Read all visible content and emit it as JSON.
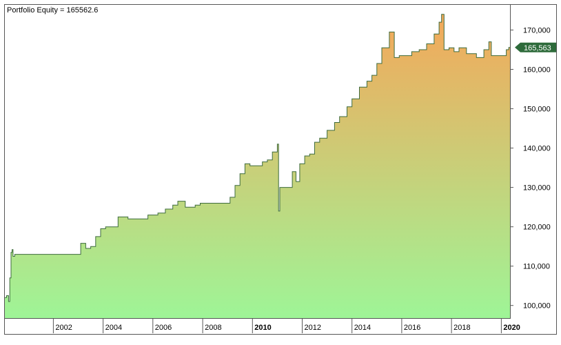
{
  "chart_data": {
    "type": "area",
    "title": "Portfolio Equity = 165562.6",
    "xlabel": "",
    "ylabel": "",
    "last_value_label": "165,563",
    "x_ticks": [
      "2002",
      "2004",
      "2006",
      "2008",
      "2010",
      "2012",
      "2014",
      "2016",
      "2018",
      "2020"
    ],
    "x_ticks_bold": [
      "2010",
      "2020"
    ],
    "y_ticks": [
      "100,000",
      "110,000",
      "120,000",
      "130,000",
      "140,000",
      "150,000",
      "160,000",
      "170,000"
    ],
    "y_tick_values": [
      100000,
      110000,
      120000,
      130000,
      140000,
      150000,
      160000,
      170000
    ],
    "xlim": [
      2000.05,
      2020.35
    ],
    "ylim": [
      96800,
      176400
    ],
    "grid": false,
    "legend": "none",
    "colors": {
      "line": "#3d6b3d",
      "fill_top": "#f4a85a",
      "fill_bottom": "#9ef597",
      "label_bg": "#2e6b3b",
      "label_text": "#ffffff",
      "axis_text": "#000000",
      "frame": "#555555"
    },
    "series": [
      {
        "values_x": [
          2000.05,
          2000.12,
          2000.2,
          2000.25,
          2000.3,
          2000.34,
          2000.38,
          2000.45,
          2000.55,
          2001.0,
          2002.5,
          2003.0,
          2003.1,
          2003.3,
          2003.5,
          2003.7,
          2003.9,
          2004.1,
          2004.3,
          2004.6,
          2004.8,
          2005.0,
          2005.5,
          2005.8,
          2006.2,
          2006.5,
          2006.8,
          2007.0,
          2007.3,
          2007.5,
          2007.7,
          2007.9,
          2008.1,
          2008.5,
          2009.0,
          2009.1,
          2009.3,
          2009.5,
          2009.7,
          2009.9,
          2010.1,
          2010.4,
          2010.6,
          2010.8,
          2011.0,
          2011.05,
          2011.1,
          2011.5,
          2011.6,
          2011.75,
          2011.9,
          2012.1,
          2012.3,
          2012.5,
          2012.7,
          2013.0,
          2013.3,
          2013.5,
          2013.8,
          2014.0,
          2014.3,
          2014.6,
          2014.8,
          2015.0,
          2015.2,
          2015.5,
          2015.7,
          2015.9,
          2016.2,
          2016.4,
          2016.7,
          2017.0,
          2017.3,
          2017.5,
          2017.6,
          2017.7,
          2017.9,
          2018.1,
          2018.3,
          2018.6,
          2018.8,
          2019.0,
          2019.1,
          2019.3,
          2019.5,
          2019.6,
          2019.8,
          2020.1,
          2020.2,
          2020.3
        ],
        "values_y": [
          102000,
          102500,
          101000,
          107000,
          113500,
          114200,
          112500,
          113000,
          113000,
          113000,
          113000,
          113000,
          115800,
          114500,
          115000,
          117500,
          119500,
          120000,
          120000,
          122500,
          122500,
          122000,
          122000,
          123000,
          123500,
          124500,
          125500,
          126500,
          125000,
          125000,
          125500,
          126000,
          126000,
          126000,
          126000,
          127500,
          130500,
          133500,
          136000,
          135500,
          135500,
          136500,
          137000,
          139000,
          141000,
          124000,
          130000,
          130000,
          134000,
          131500,
          136000,
          138000,
          138500,
          141500,
          142500,
          144500,
          146500,
          148000,
          150500,
          152500,
          155500,
          157000,
          158500,
          161500,
          165500,
          169500,
          163000,
          163500,
          163500,
          164500,
          165000,
          166500,
          169000,
          172000,
          174000,
          165000,
          165500,
          164500,
          165500,
          164000,
          164000,
          163000,
          163000,
          165000,
          167000,
          163500,
          163500,
          163500,
          165000,
          165563
        ]
      }
    ]
  }
}
